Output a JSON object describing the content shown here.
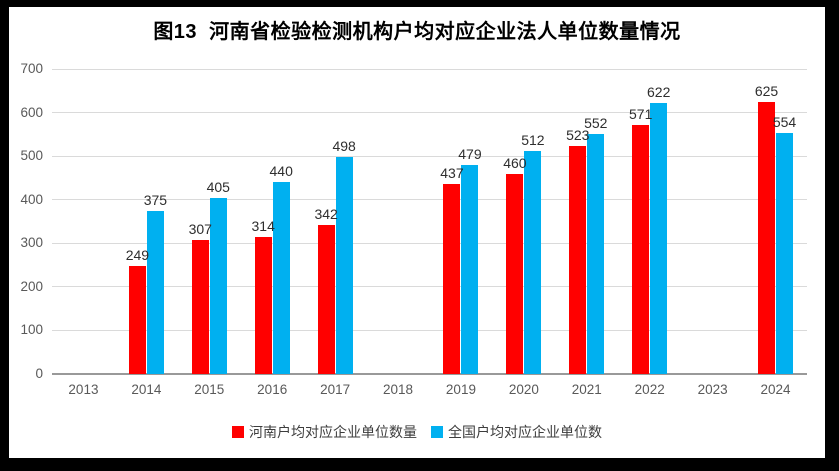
{
  "title": "图13  河南省检验检测机构户均对应企业法人单位数量情况",
  "frame_color": "#000000",
  "background_color": "#ffffff",
  "chart_data": {
    "type": "bar",
    "title": "图13  河南省检验检测机构户均对应企业法人单位数量情况",
    "categories": [
      "2013",
      "2014",
      "2015",
      "2016",
      "2017",
      "2018",
      "2019",
      "2020",
      "2021",
      "2022",
      "2023",
      "2024"
    ],
    "series": [
      {
        "name": "河南户均对应企业单位数量",
        "color": "#ff0000",
        "values": [
          null,
          249,
          307,
          314,
          342,
          null,
          437,
          460,
          523,
          571,
          null,
          625
        ]
      },
      {
        "name": "全国户均对应企业单位数",
        "color": "#00b0f0",
        "values": [
          null,
          375,
          405,
          440,
          498,
          null,
          479,
          512,
          552,
          622,
          null,
          554
        ]
      }
    ],
    "ylim": [
      0,
      700
    ],
    "yticks": [
      0,
      100,
      200,
      300,
      400,
      500,
      600,
      700
    ],
    "xlabel": "",
    "ylabel": "",
    "grid": true,
    "data_labels": true,
    "legend_position": "bottom",
    "gridline_color": "#dadada",
    "axis_line_color": "#999999",
    "tick_label_color": "#595959",
    "data_label_color": "#2e2e2e"
  }
}
